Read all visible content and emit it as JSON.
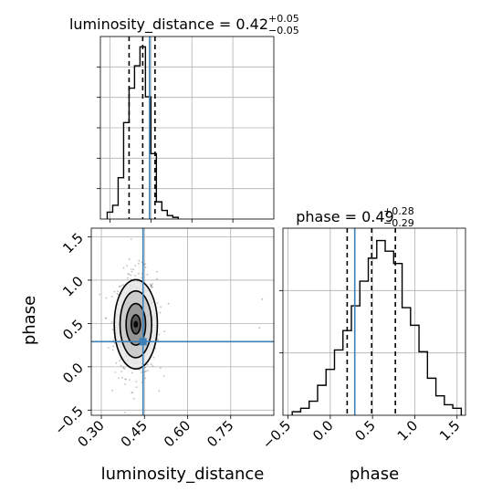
{
  "chart_data": {
    "type": "corner",
    "parameters": [
      "luminosity_distance",
      "phase"
    ],
    "colors": {
      "truth": "#3b80b8",
      "hist": "#000000",
      "grid": "#b0b0b0",
      "points": "#707070"
    },
    "truths": {
      "luminosity_distance": 0.445,
      "phase": 0.29
    },
    "panels": {
      "luminosity_distance_hist": {
        "title_main": "luminosity_distance = 0.42",
        "title_plus": "+0.05",
        "title_minus": "−0.05",
        "xlim": [
          0.265,
          0.9
        ],
        "ylim": [
          0,
          1.06
        ],
        "bin_edges": [
          0.29,
          0.31,
          0.33,
          0.35,
          0.37,
          0.39,
          0.41,
          0.43,
          0.45,
          0.47,
          0.49,
          0.51,
          0.53,
          0.55
        ],
        "counts": [
          0.04,
          0.08,
          0.24,
          0.56,
          0.76,
          0.89,
          1.0,
          0.71,
          0.38,
          0.1,
          0.05,
          0.02,
          0.01
        ],
        "quantiles": [
          0.37,
          0.42,
          0.465
        ],
        "truth": 0.445
      },
      "phase_hist": {
        "title_main": "phase = 0.49",
        "title_plus": "+0.28",
        "title_minus": "−0.29",
        "xlim": [
          -0.56,
          1.6
        ],
        "ylim": [
          0,
          1.06
        ],
        "bin_edges": [
          -0.45,
          -0.35,
          -0.25,
          -0.15,
          -0.05,
          0.05,
          0.15,
          0.25,
          0.35,
          0.45,
          0.55,
          0.65,
          0.75,
          0.85,
          0.95,
          1.05,
          1.15,
          1.25,
          1.35,
          1.45,
          1.55
        ],
        "counts": [
          0.02,
          0.04,
          0.08,
          0.17,
          0.26,
          0.37,
          0.48,
          0.62,
          0.76,
          0.89,
          0.99,
          0.93,
          0.86,
          0.61,
          0.51,
          0.36,
          0.21,
          0.11,
          0.06,
          0.04
        ],
        "quantiles": [
          0.2,
          0.49,
          0.77
        ],
        "truth": 0.29
      },
      "joint": {
        "xlim": [
          0.265,
          0.9
        ],
        "ylim": [
          -0.56,
          1.6
        ],
        "center": [
          0.42,
          0.49
        ],
        "contour_levels": [
          {
            "fill": "#e8e8e8",
            "dx": 0.075,
            "dy": 1.03
          },
          {
            "fill": "#c8c8c8",
            "dx": 0.055,
            "dy": 0.77
          },
          {
            "fill": "#8c8c8c",
            "dx": 0.034,
            "dy": 0.48
          },
          {
            "fill": "#4a4a4a",
            "dx": 0.016,
            "dy": 0.22
          },
          {
            "fill": "#000000",
            "dx": 0.008,
            "dy": 0.08
          }
        ]
      }
    },
    "axes": {
      "x_ld": {
        "label": "luminosity_distance",
        "ticks": [
          0.3,
          0.45,
          0.6,
          0.75
        ],
        "tick_labels": [
          "0.30",
          "0.45",
          "0.60",
          "0.75"
        ]
      },
      "y_phase": {
        "label": "phase",
        "ticks": [
          -0.5,
          0.0,
          0.5,
          1.0,
          1.5
        ],
        "tick_labels": [
          "−0.5",
          "0.0",
          "0.5",
          "1.0",
          "1.5"
        ]
      },
      "x_phase": {
        "label": "phase",
        "ticks": [
          -0.5,
          0.0,
          0.5,
          1.0,
          1.5
        ],
        "tick_labels": [
          "−0.5",
          "0.0",
          "0.5",
          "1.0",
          "1.5"
        ]
      }
    }
  }
}
